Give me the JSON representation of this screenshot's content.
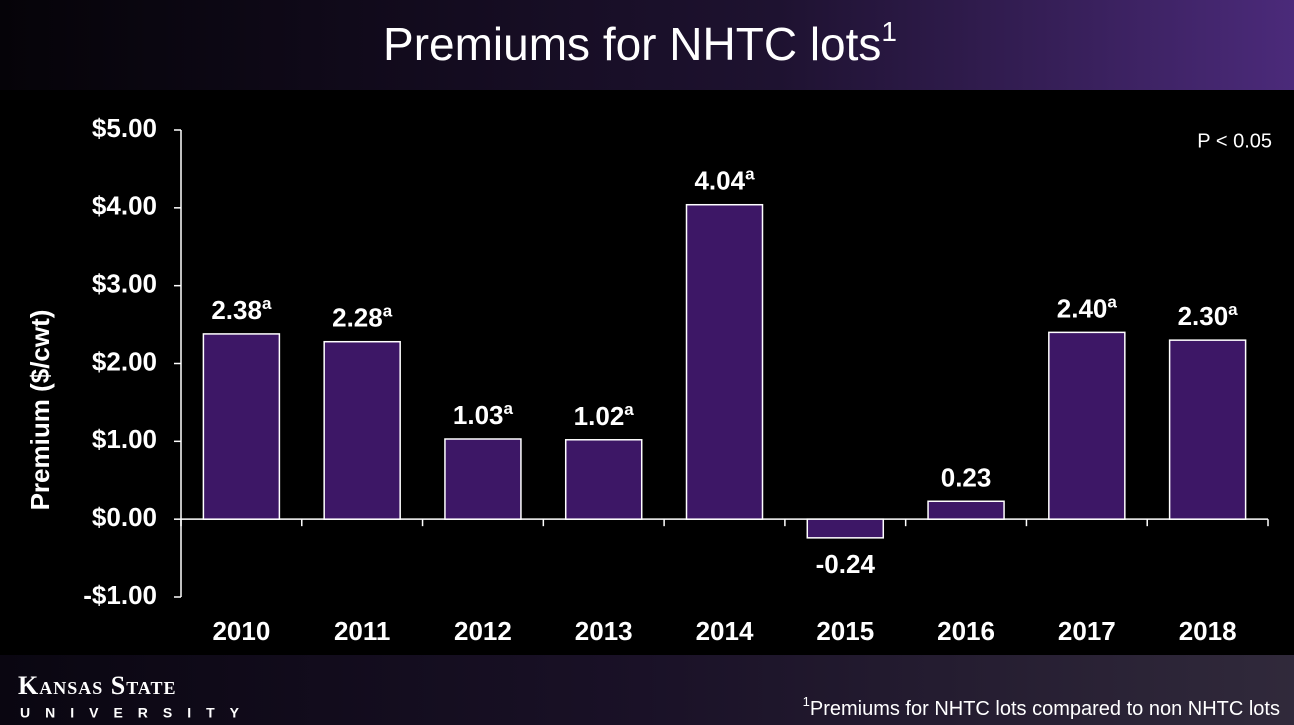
{
  "chart_data": {
    "type": "bar",
    "title": "Premiums for NHTC lots",
    "title_note": "1",
    "annotation": "P < 0.05",
    "y_label": "Premium ($/cwt)",
    "categories": [
      "2010",
      "2011",
      "2012",
      "2013",
      "2014",
      "2015",
      "2016",
      "2017",
      "2018"
    ],
    "values": [
      2.38,
      2.28,
      1.03,
      1.02,
      4.04,
      -0.24,
      0.23,
      2.4,
      2.3
    ],
    "value_labels": [
      "2.38",
      "2.28",
      "1.03",
      "1.02",
      "4.04",
      "-0.24",
      "0.23",
      "2.40",
      "2.30"
    ],
    "value_label_notes": [
      "a",
      "a",
      "a",
      "a",
      "a",
      null,
      null,
      "a",
      "a"
    ],
    "color": "#3d1766",
    "ylim": [
      -1,
      5
    ],
    "yticks": [
      {
        "value": -1,
        "label": "-$1.00"
      },
      {
        "value": 0,
        "label": "$0.00"
      },
      {
        "value": 1,
        "label": "$1.00"
      },
      {
        "value": 2,
        "label": "$2.00"
      },
      {
        "value": 3,
        "label": "$3.00"
      },
      {
        "value": 4,
        "label": "$4.00"
      },
      {
        "value": 5,
        "label": "$5.00"
      }
    ],
    "grid": false,
    "footnote_mark": "1",
    "footnote": "Premiums for NHTC lots compared to non NHTC lots",
    "logo": {
      "line1": "Kansas State",
      "line2": "UNIVERSITY"
    }
  }
}
